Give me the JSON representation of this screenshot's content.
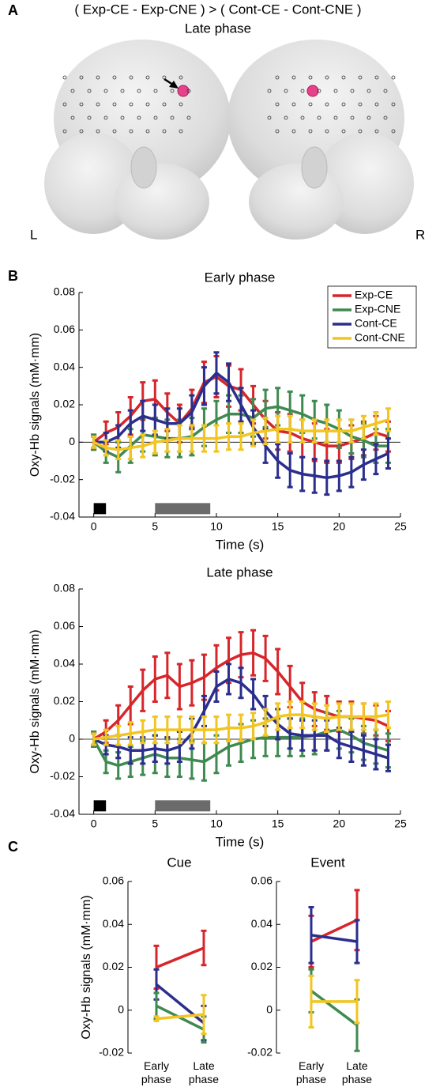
{
  "figure": {
    "panel_labels": [
      "A",
      "B",
      "C"
    ],
    "title": "( Exp-CE - Exp-CNE ) > ( Cont-CE - Cont-CNE )",
    "subtitle": "Late phase",
    "left_label": "L",
    "right_label": "R"
  },
  "chart_data": [
    {
      "type": "line",
      "title": "Early phase",
      "x_label": "Time (s)",
      "y_label": "Oxy-Hb signals (mM·mm)",
      "legend": "top-right",
      "zero_line": true,
      "x": [
        0,
        1,
        2,
        3,
        4,
        5,
        6,
        7,
        8,
        9,
        10,
        11,
        12,
        13,
        14,
        15,
        16,
        17,
        18,
        19,
        20,
        21,
        22,
        23,
        24
      ],
      "xlim": [
        -1.2,
        25
      ],
      "xticks": [
        0,
        5,
        10,
        15,
        20,
        25
      ],
      "ylim": [
        -0.04,
        0.08
      ],
      "yticks": [
        -0.04,
        -0.02,
        0,
        0.02,
        0.04,
        0.06,
        0.08
      ],
      "stimulus_bars": [
        {
          "start": 0,
          "end": 1,
          "color": "#000000"
        },
        {
          "start": 5,
          "end": 9.5,
          "color": "#6b6b6b"
        }
      ],
      "series": [
        {
          "name": "Exp-CE",
          "color": "#d7262b",
          "values": [
            0,
            0.005,
            0.008,
            0.014,
            0.022,
            0.023,
            0.016,
            0.01,
            0.018,
            0.032,
            0.035,
            0.03,
            0.028,
            0.02,
            0.012,
            0.006,
            0.005,
            0.002,
            0,
            -0.002,
            -0.002,
            0,
            0.002,
            0.005,
            0.003
          ],
          "errors": [
            0.004,
            0.006,
            0.008,
            0.01,
            0.01,
            0.01,
            0.01,
            0.01,
            0.01,
            0.011,
            0.011,
            0.011,
            0.011,
            0.01,
            0.01,
            0.01,
            0.01,
            0.01,
            0.01,
            0.009,
            0.009,
            0.009,
            0.009,
            0.009,
            0.008
          ]
        },
        {
          "name": "Exp-CNE",
          "color": "#3f8a50",
          "values": [
            0,
            -0.005,
            -0.008,
            -0.002,
            0.004,
            0.003,
            0.002,
            0.002,
            0.003,
            0.008,
            0.012,
            0.015,
            0.015,
            0.013,
            0.018,
            0.019,
            0.017,
            0.015,
            0.012,
            0.01,
            0.007,
            0.003,
            0.001,
            -0.002,
            -0.002
          ],
          "errors": [
            0.004,
            0.006,
            0.008,
            0.009,
            0.009,
            0.01,
            0.01,
            0.01,
            0.01,
            0.01,
            0.01,
            0.01,
            0.01,
            0.01,
            0.01,
            0.01,
            0.01,
            0.01,
            0.01,
            0.01,
            0.01,
            0.009,
            0.009,
            0.009,
            0.009
          ]
        },
        {
          "name": "Cont-CE",
          "color": "#2b2e8c",
          "values": [
            0,
            0,
            0.003,
            0.01,
            0.014,
            0.012,
            0.01,
            0.01,
            0.016,
            0.03,
            0.037,
            0.032,
            0.02,
            0.008,
            -0.002,
            -0.01,
            -0.015,
            -0.017,
            -0.018,
            -0.019,
            -0.018,
            -0.016,
            -0.012,
            -0.009,
            -0.006
          ],
          "errors": [
            0.003,
            0.005,
            0.006,
            0.007,
            0.008,
            0.008,
            0.008,
            0.008,
            0.009,
            0.01,
            0.011,
            0.01,
            0.009,
            0.009,
            0.009,
            0.009,
            0.009,
            0.009,
            0.009,
            0.009,
            0.008,
            0.008,
            0.008,
            0.008,
            0.008
          ]
        },
        {
          "name": "Cont-CNE",
          "color": "#f2c521",
          "values": [
            0,
            -0.003,
            -0.004,
            -0.003,
            -0.002,
            0,
            0.001,
            0.002,
            0.002,
            0.002,
            0.002,
            0.003,
            0.003,
            0.005,
            0.006,
            0.007,
            0.007,
            0.006,
            0.006,
            0.006,
            0.006,
            0.006,
            0.008,
            0.01,
            0.012
          ],
          "errors": [
            0.003,
            0.004,
            0.005,
            0.006,
            0.006,
            0.006,
            0.006,
            0.007,
            0.007,
            0.007,
            0.007,
            0.007,
            0.007,
            0.007,
            0.007,
            0.007,
            0.007,
            0.006,
            0.006,
            0.006,
            0.006,
            0.006,
            0.006,
            0.006,
            0.006
          ]
        }
      ]
    },
    {
      "type": "line",
      "title": "Late phase",
      "x_label": "Time (s)",
      "y_label": "Oxy-Hb signals (mM·mm)",
      "zero_line": true,
      "x": [
        0,
        1,
        2,
        3,
        4,
        5,
        6,
        7,
        8,
        9,
        10,
        11,
        12,
        13,
        14,
        15,
        16,
        17,
        18,
        19,
        20,
        21,
        22,
        23,
        24
      ],
      "xlim": [
        -1.2,
        25
      ],
      "xticks": [
        0,
        5,
        10,
        15,
        20,
        25
      ],
      "ylim": [
        -0.04,
        0.08
      ],
      "yticks": [
        -0.04,
        -0.02,
        0,
        0.02,
        0.04,
        0.06,
        0.08
      ],
      "stimulus_bars": [
        {
          "start": 0,
          "end": 1,
          "color": "#000000"
        },
        {
          "start": 5,
          "end": 9.5,
          "color": "#6b6b6b"
        }
      ],
      "series": [
        {
          "name": "Exp-CE",
          "color": "#d7262b",
          "values": [
            0,
            0.004,
            0.01,
            0.018,
            0.026,
            0.032,
            0.034,
            0.028,
            0.03,
            0.033,
            0.038,
            0.042,
            0.045,
            0.046,
            0.043,
            0.036,
            0.028,
            0.02,
            0.016,
            0.014,
            0.012,
            0.012,
            0.011,
            0.01,
            0.007
          ],
          "errors": [
            0.004,
            0.006,
            0.008,
            0.01,
            0.011,
            0.012,
            0.012,
            0.012,
            0.012,
            0.012,
            0.012,
            0.012,
            0.012,
            0.012,
            0.012,
            0.012,
            0.011,
            0.01,
            0.009,
            0.009,
            0.008,
            0.008,
            0.008,
            0.008,
            0.008
          ]
        },
        {
          "name": "Exp-CNE",
          "color": "#3f8a50",
          "values": [
            0,
            -0.012,
            -0.014,
            -0.012,
            -0.01,
            -0.008,
            -0.01,
            -0.01,
            -0.011,
            -0.012,
            -0.008,
            -0.004,
            -0.002,
            0,
            0.001,
            0.001,
            0.001,
            0.001,
            0.002,
            0.004,
            0.005,
            0.002,
            -0.002,
            -0.004,
            -0.006
          ],
          "errors": [
            0.004,
            0.006,
            0.007,
            0.008,
            0.009,
            0.01,
            0.01,
            0.01,
            0.01,
            0.01,
            0.01,
            0.01,
            0.01,
            0.01,
            0.01,
            0.01,
            0.01,
            0.01,
            0.01,
            0.01,
            0.01,
            0.009,
            0.009,
            0.009,
            0.009
          ]
        },
        {
          "name": "Cont-CE",
          "color": "#2b2e8c",
          "values": [
            0,
            -0.003,
            -0.004,
            -0.006,
            -0.006,
            -0.005,
            -0.006,
            -0.004,
            0.003,
            0.015,
            0.028,
            0.032,
            0.03,
            0.024,
            0.015,
            0.008,
            0.003,
            0.002,
            0.002,
            0.002,
            -0.002,
            -0.004,
            -0.006,
            -0.008,
            -0.01
          ],
          "errors": [
            0.003,
            0.005,
            0.006,
            0.007,
            0.007,
            0.007,
            0.007,
            0.008,
            0.008,
            0.008,
            0.008,
            0.008,
            0.008,
            0.008,
            0.008,
            0.008,
            0.008,
            0.008,
            0.008,
            0.008,
            0.008,
            0.008,
            0.008,
            0.008,
            0.007
          ]
        },
        {
          "name": "Cont-CNE",
          "color": "#f2c521",
          "values": [
            0,
            0.001,
            0.002,
            0.003,
            0.004,
            0.005,
            0.005,
            0.005,
            0.005,
            0.005,
            0.005,
            0.006,
            0.006,
            0.007,
            0.009,
            0.012,
            0.013,
            0.013,
            0.012,
            0.011,
            0.012,
            0.012,
            0.012,
            0.012,
            0.013
          ],
          "errors": [
            0.003,
            0.004,
            0.005,
            0.006,
            0.006,
            0.007,
            0.007,
            0.007,
            0.007,
            0.007,
            0.007,
            0.007,
            0.007,
            0.007,
            0.007,
            0.007,
            0.007,
            0.007,
            0.007,
            0.007,
            0.007,
            0.007,
            0.007,
            0.007,
            0.007
          ]
        }
      ]
    },
    {
      "type": "category-line",
      "title": "Cue",
      "y_label": "Oxy-Hb signals (mM·mm)",
      "categories": [
        "Early phase",
        "Late phase"
      ],
      "ylim": [
        -0.02,
        0.06
      ],
      "yticks": [
        -0.02,
        0,
        0.02,
        0.04,
        0.06
      ],
      "series": [
        {
          "name": "Exp-CE",
          "color": "#d7262b",
          "values": [
            0.02,
            0.029
          ],
          "errors": [
            0.01,
            0.008
          ]
        },
        {
          "name": "Cont-CE",
          "color": "#2b2e8c",
          "values": [
            0.012,
            -0.006
          ],
          "errors": [
            0.007,
            0.008
          ]
        },
        {
          "name": "Exp-CNE",
          "color": "#3f8a50",
          "values": [
            0.002,
            -0.009
          ],
          "errors": [
            0.006,
            0.006
          ]
        },
        {
          "name": "Cont-CNE",
          "color": "#f2c521",
          "values": [
            -0.004,
            -0.002
          ],
          "errors": [
            0.001,
            0.009
          ]
        }
      ]
    },
    {
      "type": "category-line",
      "title": "Event",
      "categories": [
        "Early phase",
        "Late phase"
      ],
      "ylim": [
        -0.02,
        0.06
      ],
      "yticks": [
        -0.02,
        0,
        0.02,
        0.04,
        0.06
      ],
      "series": [
        {
          "name": "Exp-CE",
          "color": "#d7262b",
          "values": [
            0.032,
            0.042
          ],
          "errors": [
            0.012,
            0.014
          ]
        },
        {
          "name": "Cont-CE",
          "color": "#2b2e8c",
          "values": [
            0.035,
            0.032
          ],
          "errors": [
            0.013,
            0.01
          ]
        },
        {
          "name": "Exp-CNE",
          "color": "#3f8a50",
          "values": [
            0.009,
            -0.007
          ],
          "errors": [
            0.01,
            0.012
          ]
        },
        {
          "name": "Cont-CNE",
          "color": "#f2c521",
          "values": [
            0.004,
            0.004
          ],
          "errors": [
            0.012,
            0.01
          ]
        }
      ]
    }
  ]
}
